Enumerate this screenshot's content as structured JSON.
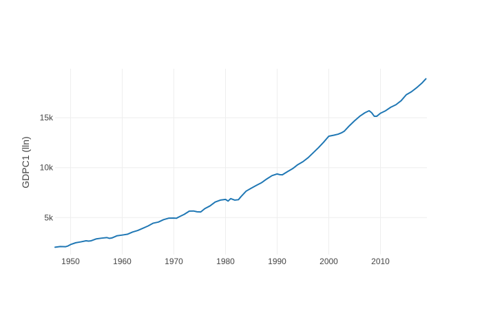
{
  "chart_data": {
    "type": "line",
    "title": "",
    "xlabel": "",
    "ylabel": "GDPC1 (lln)",
    "xlim": [
      1947,
      2019
    ],
    "ylim": [
      1300,
      19900
    ],
    "grid": true,
    "legend": "none",
    "x_ticks": [
      1950,
      1960,
      1970,
      1980,
      1990,
      2000,
      2010
    ],
    "x_tick_labels": [
      "1950",
      "1960",
      "1970",
      "1980",
      "1990",
      "2000",
      "2010"
    ],
    "y_ticks": [
      5000,
      10000,
      15000
    ],
    "y_tick_labels": [
      "5k",
      "10k",
      "15k"
    ],
    "series": [
      {
        "color": "#1f77b4",
        "x": [
          1947.0,
          1948.0,
          1949.0,
          1949.5,
          1950.0,
          1951.0,
          1952.0,
          1953.0,
          1953.5,
          1954.0,
          1955.0,
          1956.0,
          1957.0,
          1957.5,
          1958.0,
          1959.0,
          1960.0,
          1961.0,
          1962.0,
          1963.0,
          1964.0,
          1965.0,
          1966.0,
          1967.0,
          1968.0,
          1969.0,
          1970.0,
          1970.5,
          1971.0,
          1972.0,
          1973.0,
          1973.8,
          1974.5,
          1975.2,
          1976.0,
          1977.0,
          1978.0,
          1979.0,
          1980.0,
          1980.5,
          1981.0,
          1981.8,
          1982.5,
          1983.0,
          1984.0,
          1985.0,
          1986.0,
          1987.0,
          1988.0,
          1989.0,
          1990.0,
          1990.5,
          1991.0,
          1992.0,
          1993.0,
          1994.0,
          1995.0,
          1996.0,
          1997.0,
          1998.0,
          1999.0,
          2000.0,
          2001.0,
          2001.8,
          2002.5,
          2003.0,
          2004.0,
          2005.0,
          2006.0,
          2007.0,
          2007.8,
          2008.3,
          2008.8,
          2009.3,
          2010.0,
          2011.0,
          2012.0,
          2013.0,
          2014.0,
          2015.0,
          2016.0,
          2017.0,
          2018.0,
          2018.8
        ],
        "y": [
          2030,
          2100,
          2080,
          2160,
          2300,
          2480,
          2570,
          2680,
          2640,
          2680,
          2870,
          2940,
          3000,
          2920,
          2960,
          3180,
          3250,
          3330,
          3550,
          3710,
          3930,
          4160,
          4440,
          4550,
          4790,
          4940,
          4950,
          4930,
          5070,
          5320,
          5650,
          5660,
          5580,
          5560,
          5900,
          6170,
          6560,
          6750,
          6820,
          6650,
          6900,
          6750,
          6790,
          7100,
          7650,
          7950,
          8230,
          8500,
          8870,
          9200,
          9370,
          9300,
          9280,
          9600,
          9900,
          10300,
          10600,
          11000,
          11500,
          12000,
          12550,
          13150,
          13250,
          13350,
          13500,
          13650,
          14200,
          14700,
          15150,
          15500,
          15700,
          15500,
          15150,
          15150,
          15450,
          15700,
          16050,
          16300,
          16700,
          17300,
          17600,
          18000,
          18450,
          18900
        ]
      }
    ]
  }
}
